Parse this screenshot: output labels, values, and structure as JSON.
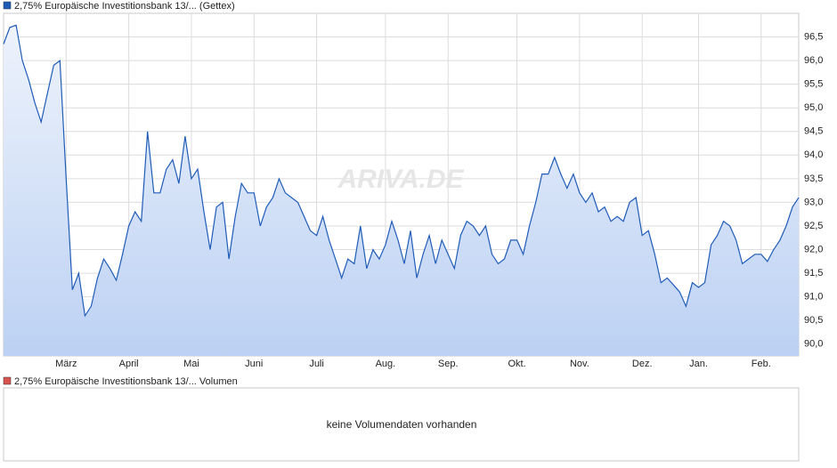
{
  "chart_data": [
    {
      "type": "line",
      "watermark": "ARIVA.DE",
      "series": [
        {
          "name": "2,75% Europäische Investitionsbank 13/... (Gettex)",
          "color": "#1f5cb8",
          "values": [
            96.35,
            96.7,
            96.75,
            96.0,
            95.6,
            95.1,
            94.7,
            95.3,
            95.9,
            96.0,
            93.5,
            91.15,
            91.5,
            90.6,
            90.8,
            91.4,
            91.8,
            91.6,
            91.35,
            91.9,
            92.5,
            92.8,
            92.6,
            94.5,
            93.2,
            93.2,
            93.7,
            93.9,
            93.4,
            94.4,
            93.5,
            93.7,
            92.8,
            92.0,
            92.9,
            93.0,
            91.8,
            92.7,
            93.4,
            93.2,
            93.2,
            92.5,
            92.9,
            93.1,
            93.5,
            93.2,
            93.1,
            93.0,
            92.7,
            92.4,
            92.3,
            92.7,
            92.2,
            91.8,
            91.4,
            91.8,
            91.7,
            92.5,
            91.6,
            92.0,
            91.8,
            92.1,
            92.6,
            92.2,
            91.7,
            92.4,
            91.4,
            91.9,
            92.3,
            91.7,
            92.2,
            91.9,
            91.6,
            92.3,
            92.6,
            92.5,
            92.3,
            92.5,
            91.9,
            91.7,
            91.8,
            92.2,
            92.2,
            91.9,
            92.5,
            93.0,
            93.6,
            93.6,
            93.95,
            93.6,
            93.3,
            93.6,
            93.2,
            93.0,
            93.2,
            92.8,
            92.9,
            92.6,
            92.7,
            92.6,
            93.0,
            93.1,
            92.3,
            92.4,
            91.9,
            91.3,
            91.4,
            91.25,
            91.1,
            90.8,
            91.3,
            91.2,
            91.3,
            92.1,
            92.3,
            92.6,
            92.5,
            92.2,
            91.7,
            91.8,
            91.9,
            91.9,
            91.75,
            92.0,
            92.2,
            92.5,
            92.9,
            93.1
          ]
        }
      ],
      "xlim": [
        0,
        127
      ],
      "xticks": [
        {
          "value": 10,
          "label": "März"
        },
        {
          "value": 20,
          "label": "April"
        },
        {
          "value": 30,
          "label": "Mai"
        },
        {
          "value": 40,
          "label": "Juni"
        },
        {
          "value": 50,
          "label": "Juli"
        },
        {
          "value": 61,
          "label": "Aug."
        },
        {
          "value": 71,
          "label": "Sep."
        },
        {
          "value": 82,
          "label": "Okt."
        },
        {
          "value": 92,
          "label": "Nov."
        },
        {
          "value": 102,
          "label": "Dez."
        },
        {
          "value": 111,
          "label": "Jan."
        },
        {
          "value": 121,
          "label": "Feb."
        }
      ],
      "ylim": [
        89.75,
        97.0
      ],
      "yticks": [
        {
          "value": 90.0,
          "label": "90,0"
        },
        {
          "value": 90.5,
          "label": "90,5"
        },
        {
          "value": 91.0,
          "label": "91,0"
        },
        {
          "value": 91.5,
          "label": "91,5"
        },
        {
          "value": 92.0,
          "label": "92,0"
        },
        {
          "value": 92.5,
          "label": "92,5"
        },
        {
          "value": 93.0,
          "label": "93,0"
        },
        {
          "value": 93.5,
          "label": "93,5"
        },
        {
          "value": 94.0,
          "label": "94,0"
        },
        {
          "value": 94.5,
          "label": "94,5"
        },
        {
          "value": 95.0,
          "label": "95,0"
        },
        {
          "value": 95.5,
          "label": "95,5"
        },
        {
          "value": 96.0,
          "label": "96,0"
        },
        {
          "value": 96.5,
          "label": "96,5"
        }
      ],
      "grid": true
    },
    {
      "type": "bar",
      "series": [
        {
          "name": "2,75% Europäische Investitionsbank 13/... Volumen",
          "color": "#d9534f",
          "values": []
        }
      ],
      "message": "keine Volumendaten vorhanden"
    }
  ]
}
